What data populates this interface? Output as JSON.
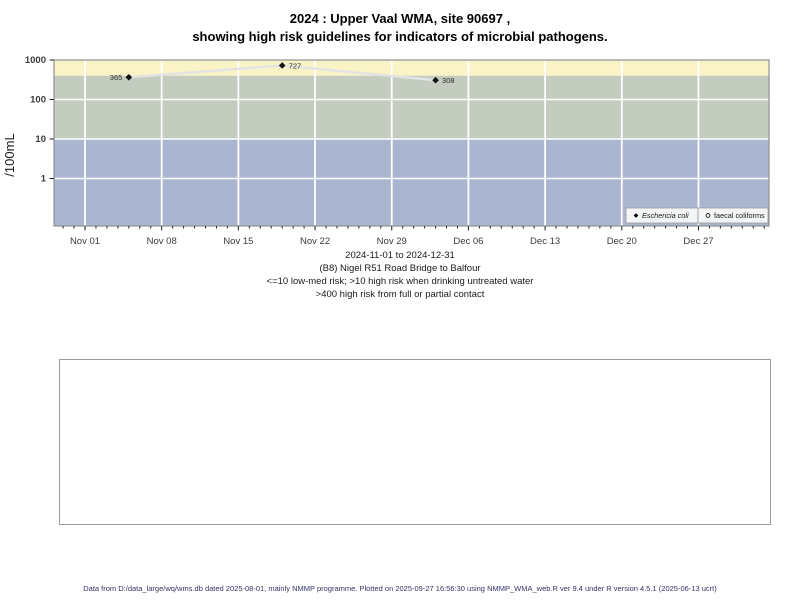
{
  "title": {
    "line1": "2024 : Upper Vaal WMA, site 90697 ,",
    "line2": "showing high risk guidelines for indicators of microbial pathogens."
  },
  "chart_data": {
    "type": "line",
    "yscale": "log",
    "ylabel": "/100mL",
    "yticks": [
      1,
      10,
      100,
      1000
    ],
    "xticks": {
      "labels": [
        "Nov 01",
        "Nov 08",
        "Nov 15",
        "Nov 22",
        "Nov 29",
        "Dec 06",
        "Dec 13",
        "Dec 20",
        "Dec 27"
      ],
      "day_offsets": [
        0,
        7,
        14,
        21,
        28,
        35,
        42,
        49,
        56
      ]
    },
    "x_minor_tick_days": [
      -2,
      62
    ],
    "grid": "white major gridlines on",
    "legend_position": "bottom-right-inside",
    "bands": [
      {
        "color": "#faf3c6",
        "from_value": 400,
        "to_value": null
      },
      {
        "color": "#c3ccbf",
        "from_value": 10,
        "to_value": 400
      },
      {
        "color": "#aab6cf",
        "from_value": null,
        "to_value": 10
      }
    ],
    "series": [
      {
        "name": "Eschericia coli",
        "marker": "filled-diamond",
        "label_style": "italic",
        "points": [
          {
            "day": 4,
            "value": 365,
            "label": "365",
            "label_side": "left"
          },
          {
            "day": 18,
            "value": 727,
            "label": "727",
            "label_side": "right"
          },
          {
            "day": 32,
            "value": 308,
            "label": "308",
            "label_side": "right"
          }
        ]
      },
      {
        "name": "faecal coliforms",
        "marker": "open-circle",
        "label_style": "normal",
        "points": []
      }
    ]
  },
  "caption": {
    "line1": "2024-11-01 to 2024-12-31",
    "line2": "(B8) Nigel R51 Road Bridge to Balfour",
    "line3": "<=10 low-med risk; >10 high risk when drinking untreated water",
    "line4": ">400 high risk from full or partial contact"
  },
  "footer": {
    "text": "Data from D:/data_large/wq/wms.db dated 2025-08-01, mainly NMMP programme. Plotted on 2025-09-27 16:56:30 using NMMP_WMA_web.R ver 9.4 under R version 4.5.1 (2025-06-13 ucrt)"
  },
  "colors": {
    "grid": "#ffffff",
    "panel_border": "#909090",
    "series_line": "#e3e3e3",
    "point": "#111111",
    "tick": "#222222",
    "tick_label": "#3a3a3a",
    "point_label": "#2a2a2a",
    "legend_bg": "#f3f5f7",
    "legend_border": "#999999",
    "footer_text": "#333366"
  }
}
